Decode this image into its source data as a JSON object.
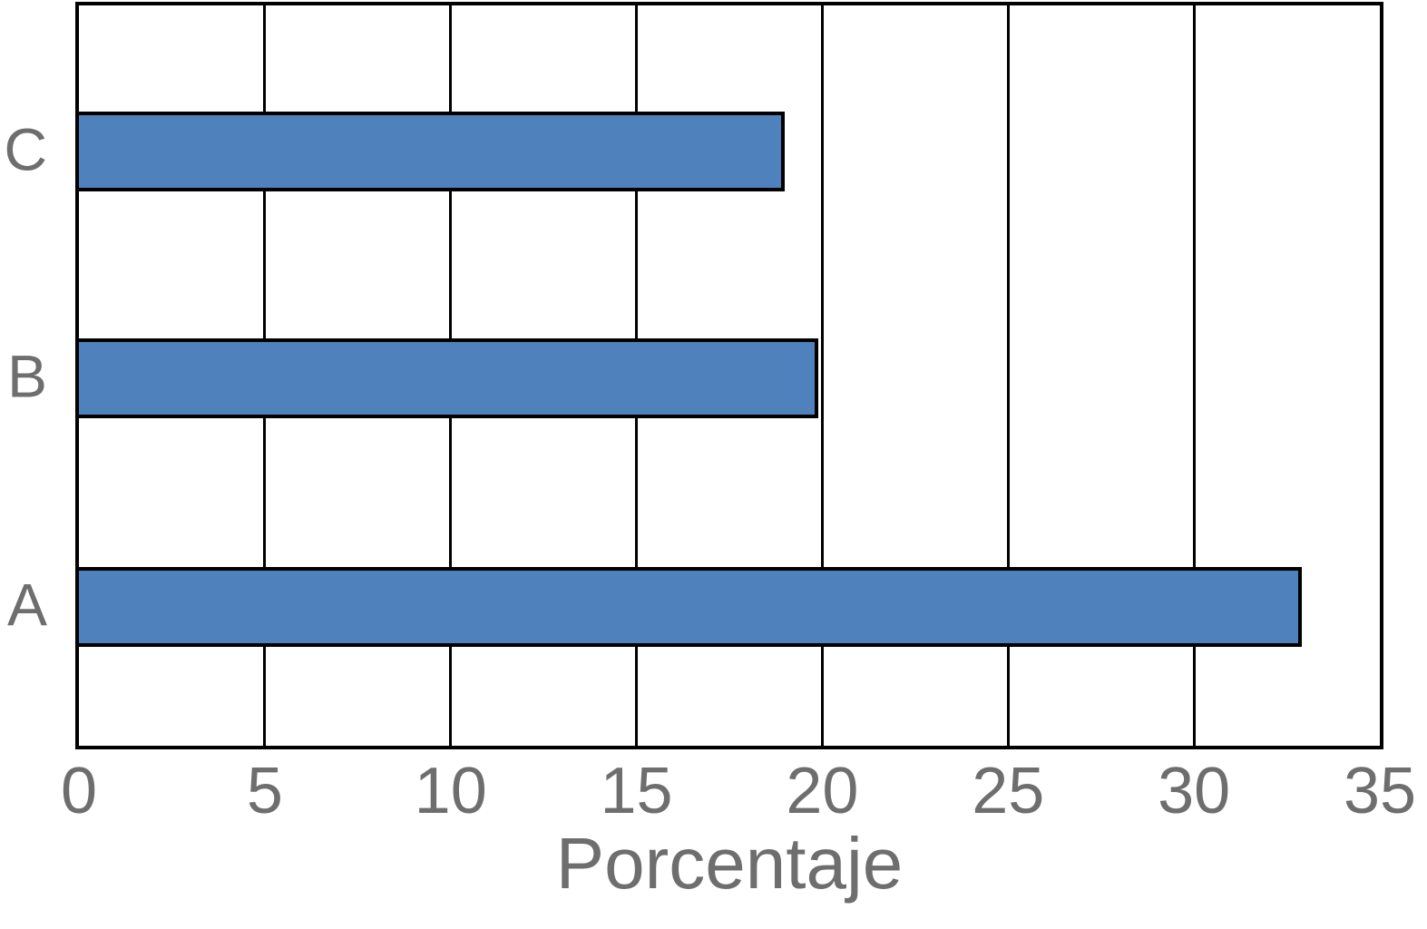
{
  "chart_data": {
    "type": "bar",
    "orientation": "horizontal",
    "title": "",
    "categories": [
      "C",
      "B",
      "A"
    ],
    "values": [
      19.0,
      19.9,
      32.9
    ],
    "xlabel": "Porcentaje",
    "ylabel": "",
    "xlim": [
      0,
      35
    ],
    "xticks": [
      "0",
      "5",
      "10",
      "15",
      "20",
      "25",
      "30",
      "35"
    ],
    "legend": "none",
    "grid": "vertical-gridlines-only",
    "colors": {
      "bar_fill": "#4f81bd",
      "bar_border": "#000000",
      "frame": "#000000",
      "gridline": "#000000",
      "axis_text": "#6e6e6e",
      "background": "#ffffff"
    }
  }
}
